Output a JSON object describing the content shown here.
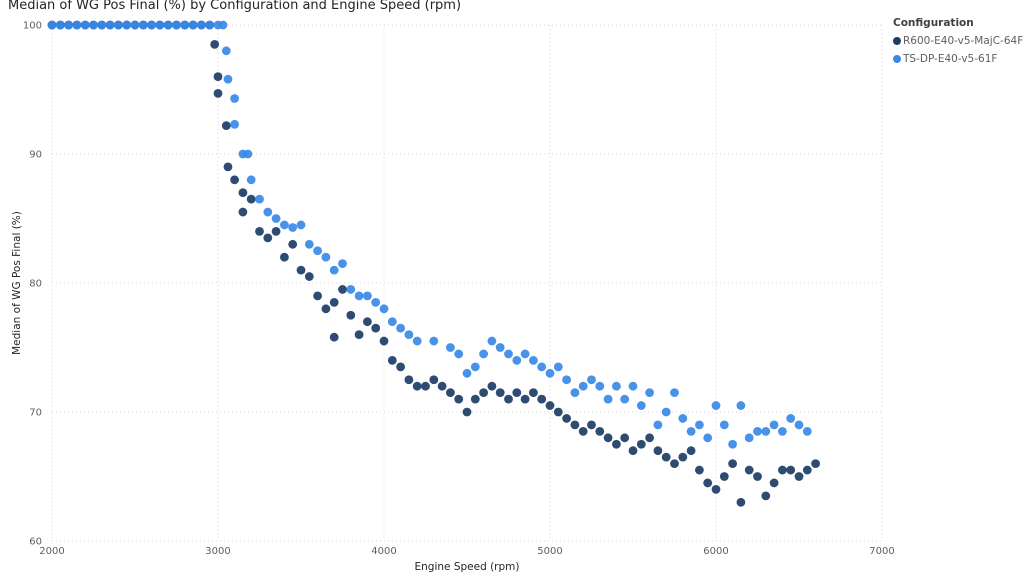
{
  "chart_data": {
    "type": "scatter",
    "title": "Median of WG Pos Final (%) by Configuration and Engine Speed (rpm)",
    "xlabel": "Engine Speed (rpm)",
    "ylabel": "Median of WG Pos Final (%)",
    "xlim": [
      2000,
      7000
    ],
    "ylim": [
      60,
      100
    ],
    "xticks": [
      2000,
      3000,
      4000,
      5000,
      6000,
      7000
    ],
    "yticks": [
      60,
      70,
      80,
      90,
      100
    ],
    "grid": true,
    "legend": {
      "title": "Configuration",
      "placement": "top-right"
    },
    "series": [
      {
        "name": "R600-E40-v5-MajC-64F",
        "color": "#1c3d66",
        "points": [
          [
            2000,
            100
          ],
          [
            2050,
            100
          ],
          [
            2100,
            100
          ],
          [
            2150,
            100
          ],
          [
            2200,
            100
          ],
          [
            2250,
            100
          ],
          [
            2300,
            100
          ],
          [
            2350,
            100
          ],
          [
            2400,
            100
          ],
          [
            2450,
            100
          ],
          [
            2500,
            100
          ],
          [
            2550,
            100
          ],
          [
            2600,
            100
          ],
          [
            2650,
            100
          ],
          [
            2700,
            100
          ],
          [
            2750,
            100
          ],
          [
            2800,
            100
          ],
          [
            2850,
            100
          ],
          [
            2900,
            100
          ],
          [
            2950,
            100
          ],
          [
            2980,
            98.5
          ],
          [
            3000,
            96
          ],
          [
            3000,
            94.7
          ],
          [
            3050,
            92.2
          ],
          [
            3060,
            89
          ],
          [
            3100,
            88
          ],
          [
            3150,
            87
          ],
          [
            3150,
            85.5
          ],
          [
            3200,
            86.5
          ],
          [
            3250,
            84
          ],
          [
            3300,
            83.5
          ],
          [
            3350,
            84
          ],
          [
            3400,
            82
          ],
          [
            3450,
            83
          ],
          [
            3500,
            81
          ],
          [
            3550,
            80.5
          ],
          [
            3600,
            79
          ],
          [
            3650,
            78
          ],
          [
            3700,
            75.8
          ],
          [
            3700,
            78.5
          ],
          [
            3750,
            79.5
          ],
          [
            3800,
            77.5
          ],
          [
            3850,
            76
          ],
          [
            3900,
            77
          ],
          [
            3950,
            76.5
          ],
          [
            4000,
            75.5
          ],
          [
            4050,
            74
          ],
          [
            4100,
            73.5
          ],
          [
            4150,
            72.5
          ],
          [
            4200,
            72
          ],
          [
            4250,
            72
          ],
          [
            4300,
            72.5
          ],
          [
            4350,
            72
          ],
          [
            4400,
            71.5
          ],
          [
            4450,
            71
          ],
          [
            4500,
            70
          ],
          [
            4550,
            71
          ],
          [
            4600,
            71.5
          ],
          [
            4650,
            72
          ],
          [
            4700,
            71.5
          ],
          [
            4750,
            71
          ],
          [
            4800,
            71.5
          ],
          [
            4850,
            71
          ],
          [
            4900,
            71.5
          ],
          [
            4950,
            71
          ],
          [
            5000,
            70.5
          ],
          [
            5050,
            70
          ],
          [
            5100,
            69.5
          ],
          [
            5150,
            69
          ],
          [
            5200,
            68.5
          ],
          [
            5250,
            69
          ],
          [
            5300,
            68.5
          ],
          [
            5350,
            68
          ],
          [
            5400,
            67.5
          ],
          [
            5450,
            68
          ],
          [
            5500,
            67
          ],
          [
            5550,
            67.5
          ],
          [
            5600,
            68
          ],
          [
            5650,
            67
          ],
          [
            5700,
            66.5
          ],
          [
            5750,
            66
          ],
          [
            5800,
            66.5
          ],
          [
            5850,
            67
          ],
          [
            5900,
            65.5
          ],
          [
            5950,
            64.5
          ],
          [
            6000,
            64
          ],
          [
            6050,
            65
          ],
          [
            6100,
            66
          ],
          [
            6150,
            63
          ],
          [
            6200,
            65.5
          ],
          [
            6250,
            65
          ],
          [
            6300,
            63.5
          ],
          [
            6350,
            64.5
          ],
          [
            6400,
            65.5
          ],
          [
            6450,
            65.5
          ],
          [
            6500,
            65
          ],
          [
            6550,
            65.5
          ],
          [
            6600,
            66
          ]
        ]
      },
      {
        "name": "TS-DP-E40-v5-61F",
        "color": "#3a89e8",
        "points": [
          [
            2000,
            100
          ],
          [
            2050,
            100
          ],
          [
            2100,
            100
          ],
          [
            2150,
            100
          ],
          [
            2200,
            100
          ],
          [
            2250,
            100
          ],
          [
            2300,
            100
          ],
          [
            2350,
            100
          ],
          [
            2400,
            100
          ],
          [
            2450,
            100
          ],
          [
            2500,
            100
          ],
          [
            2550,
            100
          ],
          [
            2600,
            100
          ],
          [
            2650,
            100
          ],
          [
            2700,
            100
          ],
          [
            2750,
            100
          ],
          [
            2800,
            100
          ],
          [
            2850,
            100
          ],
          [
            2900,
            100
          ],
          [
            2950,
            100
          ],
          [
            3000,
            100
          ],
          [
            3030,
            100
          ],
          [
            3050,
            98
          ],
          [
            3060,
            95.8
          ],
          [
            3100,
            94.3
          ],
          [
            3100,
            92.3
          ],
          [
            3150,
            90
          ],
          [
            3180,
            90
          ],
          [
            3200,
            88
          ],
          [
            3250,
            86.5
          ],
          [
            3300,
            85.5
          ],
          [
            3350,
            85
          ],
          [
            3400,
            84.5
          ],
          [
            3450,
            84.3
          ],
          [
            3500,
            84.5
          ],
          [
            3550,
            83
          ],
          [
            3600,
            82.5
          ],
          [
            3650,
            82
          ],
          [
            3700,
            81
          ],
          [
            3750,
            81.5
          ],
          [
            3800,
            79.5
          ],
          [
            3850,
            79
          ],
          [
            3900,
            79
          ],
          [
            3950,
            78.5
          ],
          [
            4000,
            78
          ],
          [
            4050,
            77
          ],
          [
            4100,
            76.5
          ],
          [
            4150,
            76
          ],
          [
            4200,
            75.5
          ],
          [
            4300,
            75.5
          ],
          [
            4400,
            75
          ],
          [
            4450,
            74.5
          ],
          [
            4500,
            73
          ],
          [
            4550,
            73.5
          ],
          [
            4600,
            74.5
          ],
          [
            4650,
            75.5
          ],
          [
            4700,
            75
          ],
          [
            4750,
            74.5
          ],
          [
            4800,
            74
          ],
          [
            4850,
            74.5
          ],
          [
            4900,
            74
          ],
          [
            4950,
            73.5
          ],
          [
            5000,
            73
          ],
          [
            5050,
            73.5
          ],
          [
            5100,
            72.5
          ],
          [
            5150,
            71.5
          ],
          [
            5200,
            72
          ],
          [
            5250,
            72.5
          ],
          [
            5300,
            72
          ],
          [
            5350,
            71
          ],
          [
            5400,
            72
          ],
          [
            5450,
            71
          ],
          [
            5500,
            72
          ],
          [
            5550,
            70.5
          ],
          [
            5600,
            71.5
          ],
          [
            5650,
            69
          ],
          [
            5700,
            70
          ],
          [
            5750,
            71.5
          ],
          [
            5800,
            69.5
          ],
          [
            5850,
            68.5
          ],
          [
            5900,
            69
          ],
          [
            5950,
            68
          ],
          [
            6000,
            70.5
          ],
          [
            6050,
            69
          ],
          [
            6100,
            67.5
          ],
          [
            6150,
            70.5
          ],
          [
            6200,
            68
          ],
          [
            6250,
            68.5
          ],
          [
            6300,
            68.5
          ],
          [
            6350,
            69
          ],
          [
            6400,
            68.5
          ],
          [
            6450,
            69.5
          ],
          [
            6500,
            69
          ],
          [
            6550,
            68.5
          ]
        ]
      }
    ]
  }
}
